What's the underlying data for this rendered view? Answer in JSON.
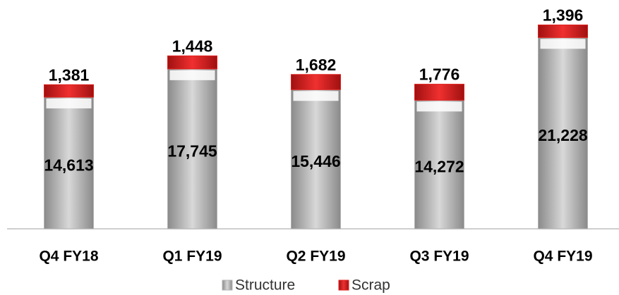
{
  "chart_data": {
    "type": "stacked_bar",
    "categories": [
      "Q4 FY18",
      "Q1 FY19",
      "Q2 FY19",
      "Q3 FY19",
      "Q4 FY19"
    ],
    "series": [
      {
        "name": "Structure",
        "color": "#b4b4b4",
        "values": [
          14613,
          17745,
          15446,
          14272,
          21228
        ],
        "value_labels": [
          "14,613",
          "17,745",
          "15,446",
          "14,272",
          "21,228"
        ]
      },
      {
        "name": "Scrap",
        "color": "#e0201c",
        "values": [
          1381,
          1448,
          1682,
          1776,
          1396
        ],
        "value_labels": [
          "1,381",
          "1,448",
          "1,682",
          "1,776",
          "1,396"
        ]
      }
    ],
    "ylim": [
      0,
      25000
    ]
  }
}
